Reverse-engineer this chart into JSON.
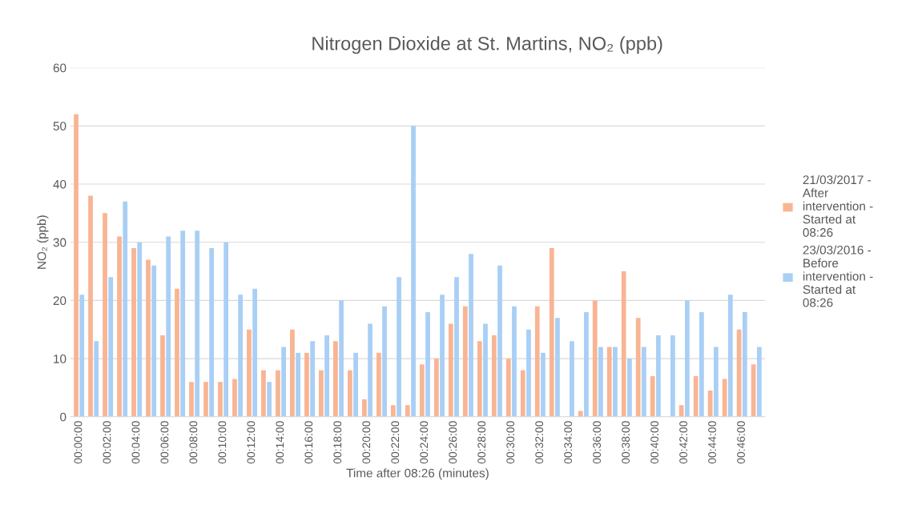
{
  "chart_data": {
    "type": "bar",
    "title": "Nitrogen Dioxide at St. Martins, NO₂ (ppb)",
    "xlabel": "Time after 08:26 (minutes)",
    "ylabel": "NO₂ (ppb)",
    "categories": [
      "00:00:00",
      null,
      "00:02:00",
      null,
      "00:04:00",
      null,
      "00:06:00",
      null,
      "00:08:00",
      null,
      "00:10:00",
      null,
      "00:12:00",
      null,
      "00:14:00",
      null,
      "00:16:00",
      null,
      "00:18:00",
      null,
      "00:20:00",
      null,
      "00:22:00",
      null,
      "00:24:00",
      null,
      "00:26:00",
      null,
      "00:28:00",
      null,
      "00:30:00",
      null,
      "00:32:00",
      null,
      "00:34:00",
      null,
      "00:36:00",
      null,
      "00:38:00",
      null,
      "00:40:00",
      null,
      "00:42:00",
      null,
      "00:44:00",
      null,
      "00:46:00",
      null
    ],
    "series": [
      {
        "name": "21/03/2017 - After intervention - Started at 08:26",
        "color": "#f8b593",
        "values": [
          52,
          38,
          35,
          31,
          29,
          27,
          14,
          22,
          6,
          6,
          6,
          6.5,
          15,
          8,
          8,
          15,
          11,
          8,
          13,
          8,
          3,
          11,
          2,
          2,
          9,
          10,
          16,
          19,
          13,
          14,
          10,
          8,
          19,
          29,
          0,
          1,
          20,
          12,
          25,
          17,
          7,
          0,
          2,
          7,
          4.5,
          6.5,
          15,
          9
        ]
      },
      {
        "name": "23/03/2016 - Before intervention - Started at 08:26",
        "color": "#a9cff5",
        "values": [
          21,
          13,
          24,
          37,
          30,
          26,
          31,
          32,
          32,
          29,
          30,
          21,
          22,
          6,
          12,
          11,
          13,
          14,
          20,
          11,
          16,
          19,
          24,
          50,
          18,
          21,
          24,
          28,
          16,
          26,
          19,
          15,
          11,
          17,
          13,
          18,
          12,
          12,
          10,
          12,
          14,
          14,
          20,
          18,
          12,
          21,
          18,
          12
        ]
      }
    ],
    "ylim": [
      0,
      60
    ],
    "yticks": [
      0,
      10,
      20,
      30,
      40,
      50,
      60
    ],
    "grid": "y",
    "legend": "right"
  }
}
